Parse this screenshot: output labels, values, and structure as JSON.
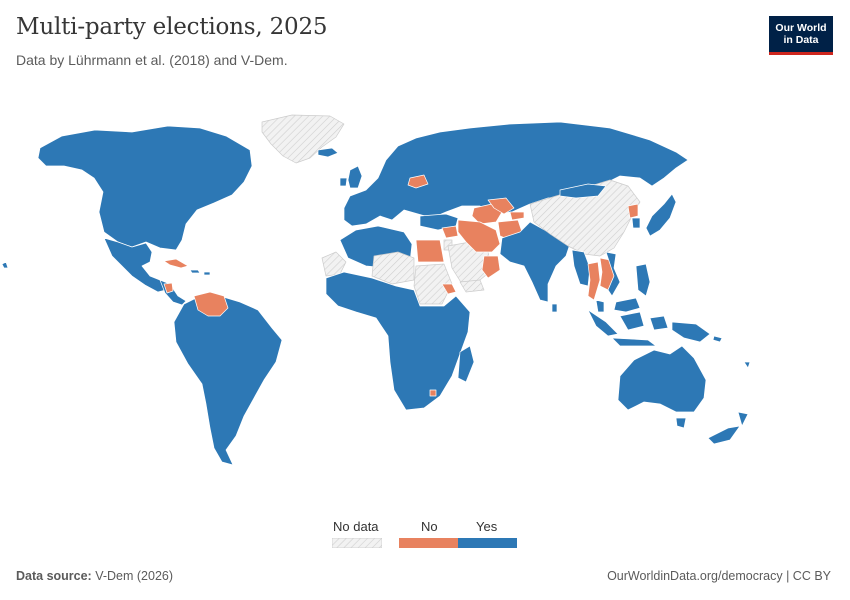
{
  "header": {
    "title": "Multi-party elections, 2025",
    "subtitle": "Data by Lührmann et al. (2018) and V-Dem."
  },
  "logo": {
    "line1": "Our World",
    "line2": "in Data"
  },
  "legend": {
    "items": [
      {
        "label": "No data",
        "color": "#e8e8e8",
        "pattern": "hatched"
      },
      {
        "label": "No",
        "color": "#e8825f"
      },
      {
        "label": "Yes",
        "color": "#2d78b5"
      }
    ]
  },
  "colors": {
    "yes": "#2d78b5",
    "no": "#e8825f",
    "no_data": "#e8e8e8",
    "border": "#ffffff"
  },
  "countries": {
    "no": [
      "Cuba",
      "Nicaragua",
      "Venezuela",
      "Belarus",
      "Egypt",
      "Syria",
      "Iran",
      "Afghanistan",
      "Turkmenistan",
      "Uzbekistan",
      "Tajikistan",
      "Oman",
      "Eritrea",
      "Eswatini",
      "North Korea",
      "Laos",
      "Cambodia",
      "Thailand"
    ],
    "no_data": [
      "Greenland",
      "Western Sahara",
      "Libya",
      "Sudan",
      "Saudi Arabia",
      "China",
      "Yemen",
      "Jordan"
    ]
  },
  "footer": {
    "source_label": "Data source:",
    "source_value": "V-Dem (2026)",
    "url": "OurWorldinData.org/democracy",
    "separator": " | ",
    "license": "CC BY"
  }
}
